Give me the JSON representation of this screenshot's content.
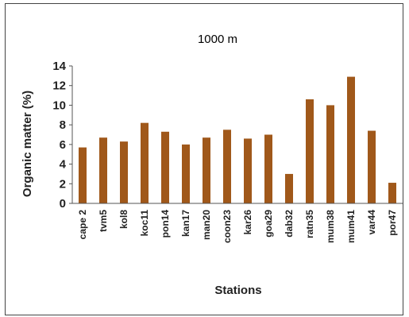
{
  "chart_data": {
    "type": "bar",
    "title": "1000 m",
    "xlabel": "Stations",
    "ylabel": "Organic matter (%)",
    "ylim": [
      0,
      14
    ],
    "yticks": [
      0,
      2,
      4,
      6,
      8,
      10,
      12,
      14
    ],
    "grid": false,
    "legend": "none",
    "bar_color": "#A0581A",
    "categories": [
      "cape 2",
      "tvm5",
      "kol8",
      "koc11",
      "pon14",
      "kan17",
      "man20",
      "coon23",
      "kar26",
      "goa29",
      "dab32",
      "ratn35",
      "mum38",
      "mum41",
      "var44",
      "por47"
    ],
    "values": [
      5.7,
      6.7,
      6.3,
      8.2,
      7.3,
      6.0,
      6.7,
      7.5,
      6.6,
      7.0,
      3.0,
      10.6,
      10.0,
      12.9,
      7.4,
      2.1
    ]
  }
}
